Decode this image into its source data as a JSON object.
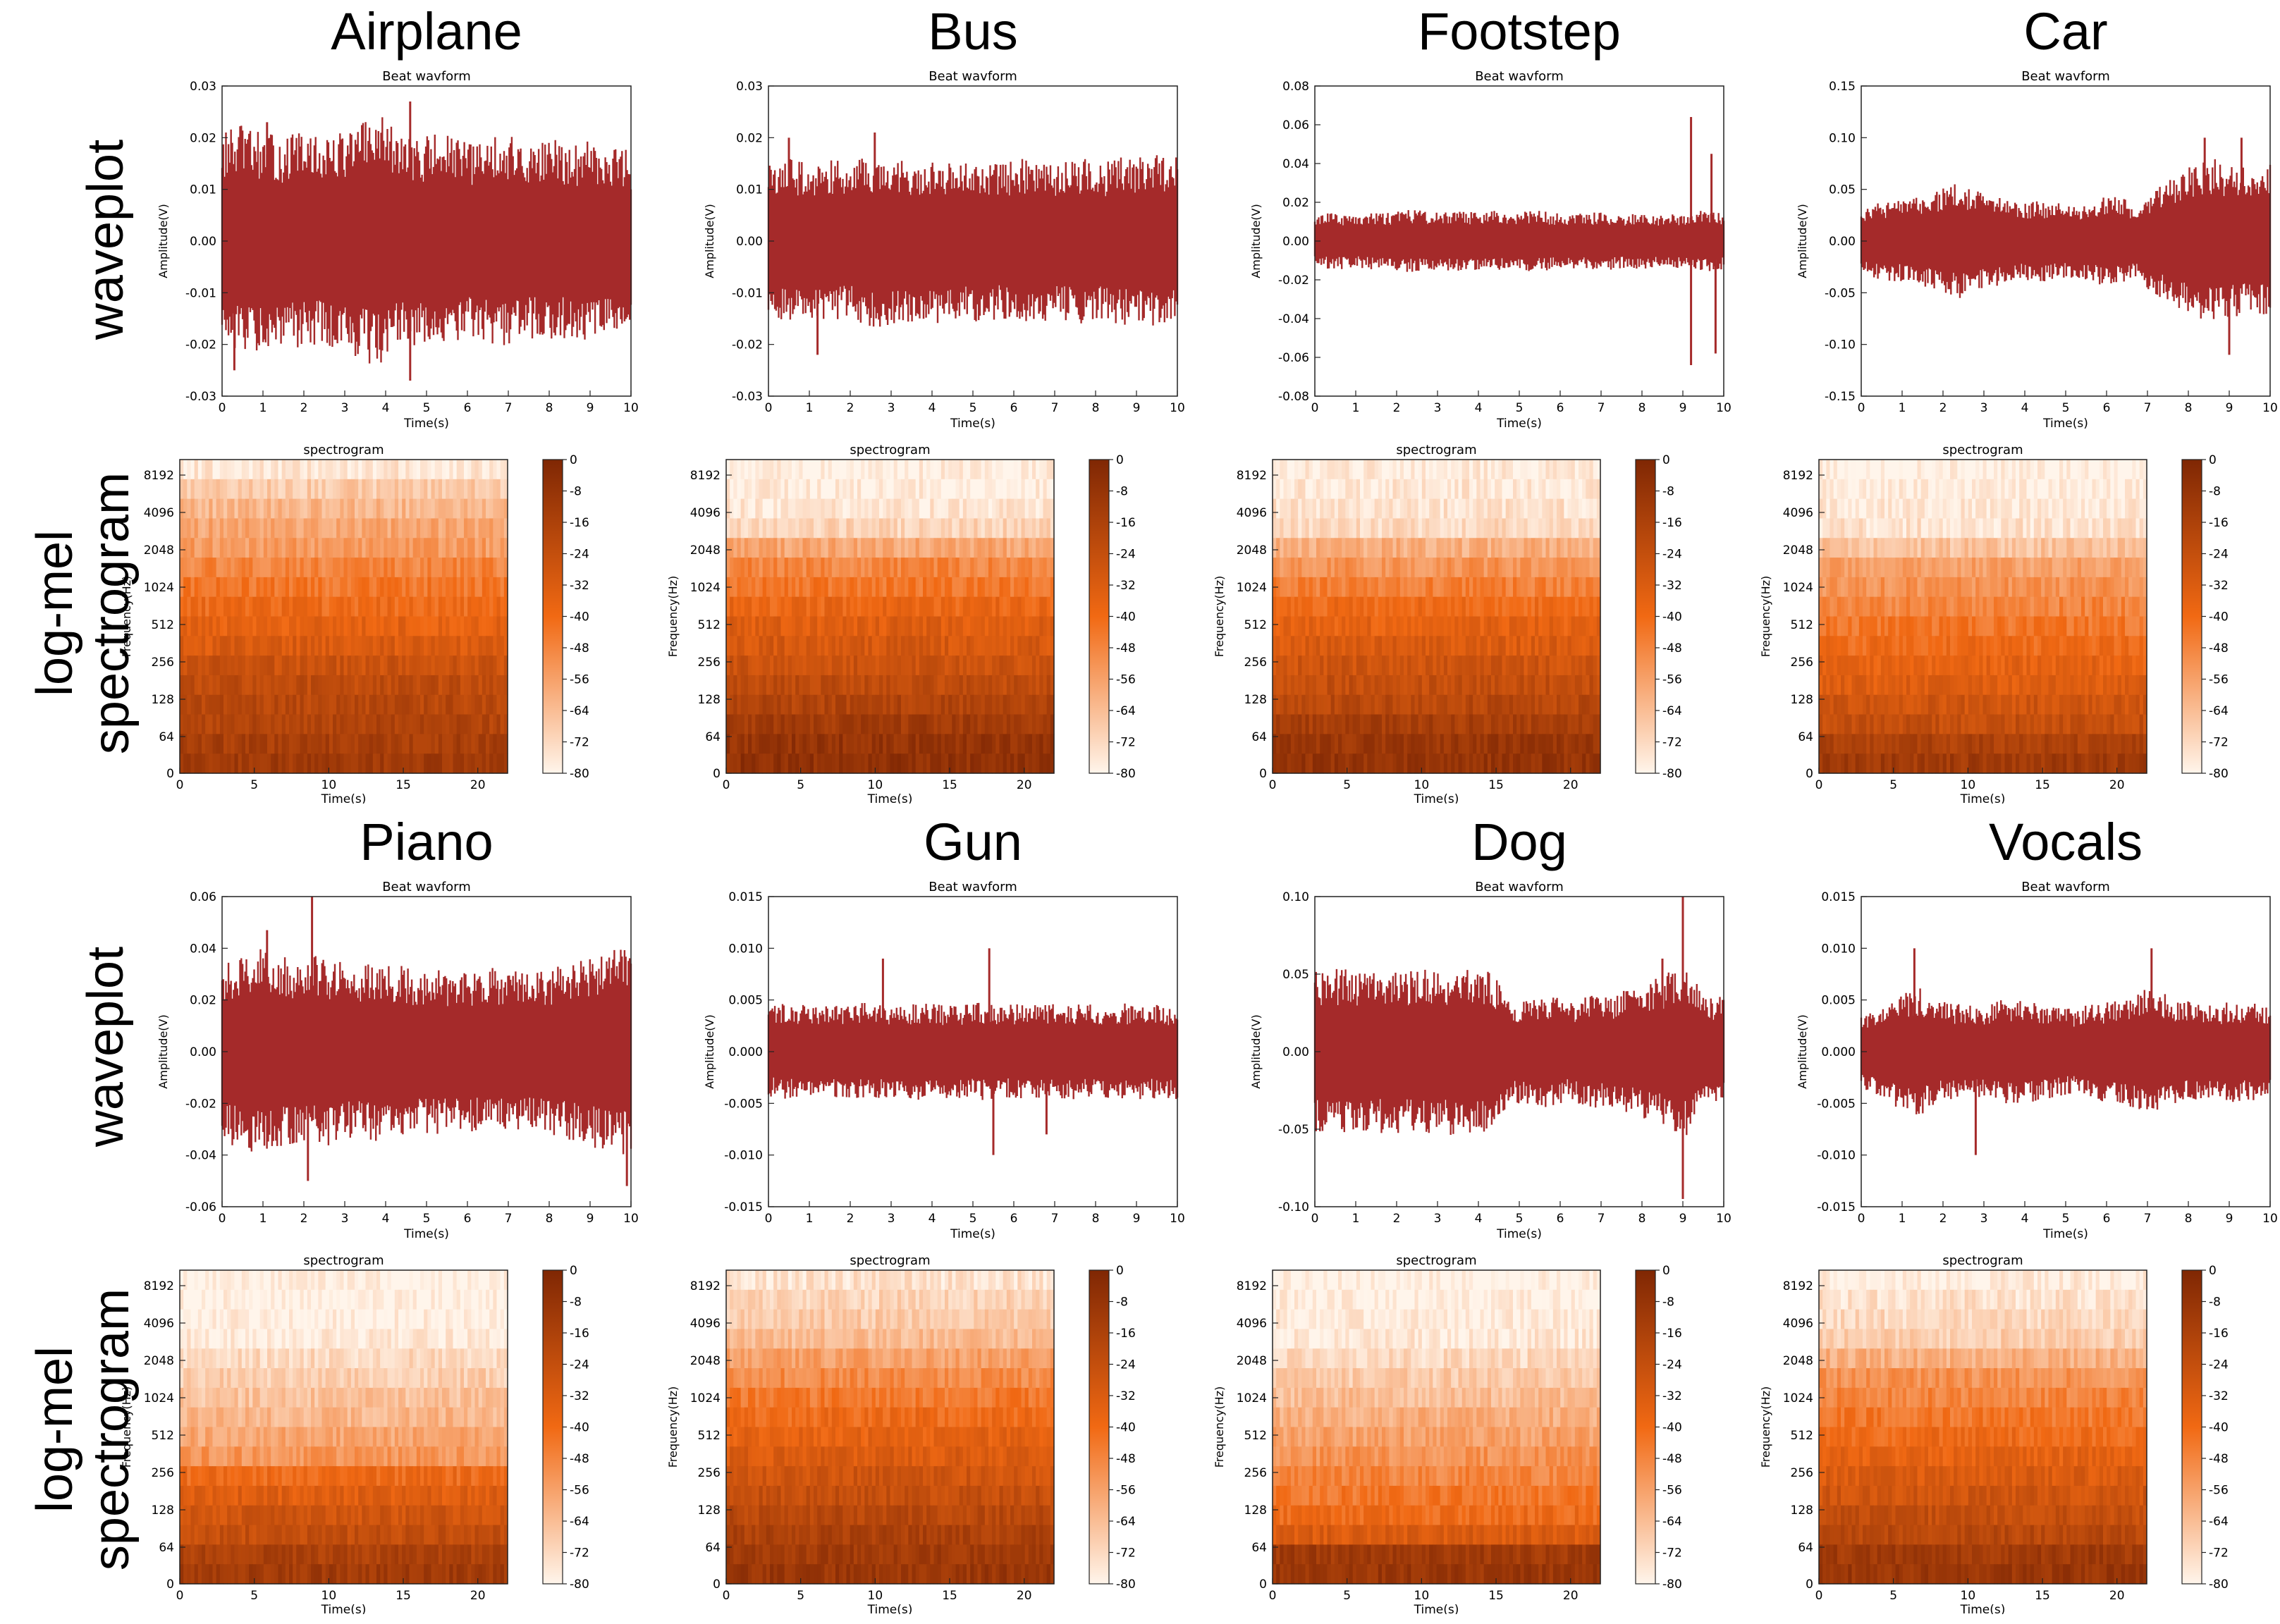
{
  "row_labels": {
    "waveplot": "waveplot",
    "logmel_line1": "log-mel",
    "logmel_line2": "spectrogram"
  },
  "colors": {
    "wave": "#a52a2a",
    "spec_dark": "#7f2704",
    "spec_light": "#fff5eb"
  },
  "chart_data": [
    {
      "id": "airplane",
      "label": "Airplane",
      "waveform": {
        "type": "area",
        "title": "Beat wavform",
        "xlabel": "Time(s)",
        "ylabel": "Amplitude(V)",
        "xlim": [
          0,
          10
        ],
        "ylim": [
          -0.03,
          0.03
        ],
        "xticks": [
          "0",
          "1",
          "2",
          "3",
          "4",
          "5",
          "6",
          "7",
          "8",
          "9",
          "10"
        ],
        "yticks": [
          "0.03",
          "0.02",
          "0.01",
          "0.00",
          "-0.01",
          "-0.02",
          "-0.03"
        ],
        "envelope": [
          0.017,
          0.018,
          0.017,
          0.016,
          0.017,
          0.016,
          0.017,
          0.018,
          0.02,
          0.017,
          0.016,
          0.017,
          0.016,
          0.015,
          0.017,
          0.016,
          0.015,
          0.016,
          0.015,
          0.016,
          0.015,
          0.014
        ],
        "peaks": [
          {
            "t": 4.6,
            "v": 0.027,
            "s": 1
          },
          {
            "t": 4.6,
            "v": 0.027,
            "s": -1
          },
          {
            "t": 0.3,
            "v": 0.025,
            "s": -1
          },
          {
            "t": 1.1,
            "v": 0.023,
            "s": 1
          }
        ]
      },
      "spectrogram": {
        "type": "heatmap",
        "title": "spectrogram",
        "xlabel": "Time(s)",
        "ylabel": "Frequency(Hz)",
        "xlim": [
          0,
          22
        ],
        "xticks": [
          "0",
          "5",
          "10",
          "15",
          "20"
        ],
        "yticks": [
          "8192",
          "4096",
          "2048",
          "1024",
          "512",
          "256",
          "128",
          "64",
          "0"
        ],
        "colorbar": [
          "0",
          "-8",
          "-16",
          "-24",
          "-32",
          "-40",
          "-48",
          "-56",
          "-64",
          "-72",
          "-80"
        ],
        "intensity": [
          0.95,
          0.85,
          0.78,
          0.72,
          0.68,
          0.6,
          0.55,
          0.5,
          0.45,
          0.4,
          0.33,
          0.28,
          0.25,
          0.22,
          0.18,
          0.15
        ]
      }
    },
    {
      "id": "bus",
      "label": "Bus",
      "waveform": {
        "type": "area",
        "title": "Beat wavform",
        "xlabel": "Time(s)",
        "ylabel": "Amplitude(V)",
        "xlim": [
          0,
          10
        ],
        "ylim": [
          -0.03,
          0.03
        ],
        "xticks": [
          "0",
          "1",
          "2",
          "3",
          "4",
          "5",
          "6",
          "7",
          "8",
          "9",
          "10"
        ],
        "yticks": [
          "0.03",
          "0.02",
          "0.01",
          "0.00",
          "-0.01",
          "-0.02",
          "-0.03"
        ],
        "envelope": [
          0.012,
          0.013,
          0.012,
          0.013,
          0.012,
          0.013,
          0.014,
          0.013,
          0.012,
          0.013,
          0.012,
          0.013,
          0.012,
          0.013,
          0.013,
          0.012,
          0.013,
          0.012,
          0.013,
          0.013,
          0.014,
          0.013
        ],
        "peaks": [
          {
            "t": 0.5,
            "v": 0.02,
            "s": 1
          },
          {
            "t": 1.2,
            "v": 0.022,
            "s": -1
          },
          {
            "t": 2.6,
            "v": 0.021,
            "s": 1
          }
        ]
      },
      "spectrogram": {
        "type": "heatmap",
        "title": "spectrogram",
        "xlabel": "Time(s)",
        "ylabel": "Frequency(Hz)",
        "xlim": [
          0,
          22
        ],
        "xticks": [
          "0",
          "5",
          "10",
          "15",
          "20"
        ],
        "yticks": [
          "8192",
          "4096",
          "2048",
          "1024",
          "512",
          "256",
          "128",
          "64",
          "0"
        ],
        "colorbar": [
          "0",
          "-8",
          "-16",
          "-24",
          "-32",
          "-40",
          "-48",
          "-56",
          "-64",
          "-72",
          "-80"
        ],
        "intensity": [
          0.98,
          0.97,
          0.95,
          0.88,
          0.72,
          0.6,
          0.55,
          0.48,
          0.42,
          0.38,
          0.33,
          0.28,
          0.22,
          0.15,
          0.1,
          0.08
        ]
      }
    },
    {
      "id": "footstep",
      "label": "Footstep",
      "waveform": {
        "type": "area",
        "title": "Beat wavform",
        "xlabel": "Time(s)",
        "ylabel": "Amplitude(V)",
        "xlim": [
          0,
          10
        ],
        "ylim": [
          -0.08,
          0.08
        ],
        "xticks": [
          "0",
          "1",
          "2",
          "3",
          "4",
          "5",
          "6",
          "7",
          "8",
          "9",
          "10"
        ],
        "yticks": [
          "0.08",
          "0.06",
          "0.04",
          "0.02",
          "0.00",
          "-0.02",
          "-0.04",
          "-0.06",
          "-0.08"
        ],
        "envelope": [
          0.011,
          0.012,
          0.011,
          0.012,
          0.012,
          0.013,
          0.012,
          0.013,
          0.012,
          0.013,
          0.012,
          0.013,
          0.012,
          0.011,
          0.012,
          0.012,
          0.011,
          0.012,
          0.011,
          0.012,
          0.013,
          0.012
        ],
        "peaks": [
          {
            "t": 9.2,
            "v": 0.064,
            "s": 1
          },
          {
            "t": 9.2,
            "v": 0.064,
            "s": -1
          },
          {
            "t": 9.8,
            "v": 0.058,
            "s": -1
          },
          {
            "t": 9.7,
            "v": 0.045,
            "s": 1
          }
        ]
      },
      "spectrogram": {
        "type": "heatmap",
        "title": "spectrogram",
        "xlabel": "Time(s)",
        "ylabel": "Frequency(Hz)",
        "xlim": [
          0,
          22
        ],
        "xticks": [
          "0",
          "5",
          "10",
          "15",
          "20"
        ],
        "yticks": [
          "8192",
          "4096",
          "2048",
          "1024",
          "512",
          "256",
          "128",
          "64",
          "0"
        ],
        "colorbar": [
          "0",
          "-8",
          "-16",
          "-24",
          "-32",
          "-40",
          "-48",
          "-56",
          "-64",
          "-72",
          "-80"
        ],
        "intensity": [
          0.97,
          0.95,
          0.93,
          0.9,
          0.75,
          0.65,
          0.58,
          0.5,
          0.45,
          0.4,
          0.35,
          0.3,
          0.25,
          0.18,
          0.12,
          0.1
        ]
      }
    },
    {
      "id": "car",
      "label": "Car",
      "waveform": {
        "type": "area",
        "title": "Beat wavform",
        "xlabel": "Time(s)",
        "ylabel": "Amplitude(V)",
        "xlim": [
          0,
          10
        ],
        "ylim": [
          -0.15,
          0.15
        ],
        "xticks": [
          "0",
          "1",
          "2",
          "3",
          "4",
          "5",
          "6",
          "7",
          "8",
          "9",
          "10"
        ],
        "yticks": [
          "0.15",
          "0.10",
          "0.05",
          "0.00",
          "-0.05",
          "-0.10",
          "-0.15"
        ],
        "envelope": [
          0.025,
          0.03,
          0.032,
          0.035,
          0.04,
          0.045,
          0.04,
          0.035,
          0.03,
          0.032,
          0.03,
          0.028,
          0.033,
          0.035,
          0.03,
          0.04,
          0.05,
          0.06,
          0.065,
          0.06,
          0.055,
          0.06
        ],
        "peaks": [
          {
            "t": 8.4,
            "v": 0.1,
            "s": 1
          },
          {
            "t": 9.3,
            "v": 0.1,
            "s": 1
          },
          {
            "t": 9.0,
            "v": 0.11,
            "s": -1
          }
        ]
      },
      "spectrogram": {
        "type": "heatmap",
        "title": "spectrogram",
        "xlabel": "Time(s)",
        "ylabel": "Frequency(Hz)",
        "xlim": [
          0,
          22
        ],
        "xticks": [
          "0",
          "5",
          "10",
          "15",
          "20"
        ],
        "yticks": [
          "8192",
          "4096",
          "2048",
          "1024",
          "512",
          "256",
          "128",
          "64",
          "0"
        ],
        "colorbar": [
          "0",
          "-8",
          "-16",
          "-24",
          "-32",
          "-40",
          "-48",
          "-56",
          "-64",
          "-72",
          "-80"
        ],
        "intensity": [
          0.99,
          0.98,
          0.96,
          0.93,
          0.82,
          0.7,
          0.65,
          0.6,
          0.55,
          0.5,
          0.45,
          0.42,
          0.35,
          0.3,
          0.2,
          0.15
        ]
      }
    },
    {
      "id": "piano",
      "label": "Piano",
      "waveform": {
        "type": "area",
        "title": "Beat wavform",
        "xlabel": "Time(s)",
        "ylabel": "Amplitude(V)",
        "xlim": [
          0,
          10
        ],
        "ylim": [
          -0.06,
          0.06
        ],
        "xticks": [
          "0",
          "1",
          "2",
          "3",
          "4",
          "5",
          "6",
          "7",
          "8",
          "9",
          "10"
        ],
        "yticks": [
          "0.06",
          "0.04",
          "0.02",
          "0.00",
          "-0.02",
          "-0.04",
          "-0.06"
        ],
        "envelope": [
          0.028,
          0.03,
          0.032,
          0.03,
          0.028,
          0.03,
          0.028,
          0.026,
          0.028,
          0.027,
          0.025,
          0.026,
          0.024,
          0.025,
          0.026,
          0.025,
          0.024,
          0.026,
          0.028,
          0.03,
          0.032,
          0.033
        ],
        "peaks": [
          {
            "t": 2.2,
            "v": 0.06,
            "s": 1
          },
          {
            "t": 1.1,
            "v": 0.047,
            "s": 1
          },
          {
            "t": 9.9,
            "v": 0.052,
            "s": -1
          },
          {
            "t": 2.1,
            "v": 0.05,
            "s": -1
          }
        ]
      },
      "spectrogram": {
        "type": "heatmap",
        "title": "spectrogram",
        "xlabel": "Time(s)",
        "ylabel": "Frequency(Hz)",
        "xlim": [
          0,
          22
        ],
        "xticks": [
          "0",
          "5",
          "10",
          "15",
          "20"
        ],
        "yticks": [
          "8192",
          "4096",
          "2048",
          "1024",
          "512",
          "256",
          "128",
          "64",
          "0"
        ],
        "colorbar": [
          "0",
          "-8",
          "-16",
          "-24",
          "-32",
          "-40",
          "-48",
          "-56",
          "-64",
          "-72",
          "-80"
        ],
        "intensity": [
          0.99,
          0.99,
          0.98,
          0.96,
          0.9,
          0.86,
          0.82,
          0.78,
          0.72,
          0.66,
          0.5,
          0.42,
          0.35,
          0.3,
          0.2,
          0.15
        ]
      }
    },
    {
      "id": "gun",
      "label": "Gun",
      "waveform": {
        "type": "area",
        "title": "Beat wavform",
        "xlabel": "Time(s)",
        "ylabel": "Amplitude(V)",
        "xlim": [
          0,
          10
        ],
        "ylim": [
          -0.015,
          0.015
        ],
        "xticks": [
          "0",
          "1",
          "2",
          "3",
          "4",
          "5",
          "6",
          "7",
          "8",
          "9",
          "10"
        ],
        "yticks": [
          "0.015",
          "0.010",
          "0.005",
          "0.000",
          "-0.005",
          "-0.010",
          "-0.015"
        ],
        "envelope": [
          0.0035,
          0.0038,
          0.0036,
          0.0037,
          0.0036,
          0.0038,
          0.0037,
          0.0036,
          0.0038,
          0.0036,
          0.0037,
          0.0038,
          0.0036,
          0.0037,
          0.0036,
          0.0038,
          0.0037,
          0.0036,
          0.0038,
          0.0037,
          0.0036,
          0.0037
        ],
        "peaks": [
          {
            "t": 5.5,
            "v": 0.01,
            "s": -1
          },
          {
            "t": 5.4,
            "v": 0.01,
            "s": 1
          },
          {
            "t": 2.8,
            "v": 0.009,
            "s": 1
          },
          {
            "t": 6.8,
            "v": 0.008,
            "s": -1
          }
        ]
      },
      "spectrogram": {
        "type": "heatmap",
        "title": "spectrogram",
        "xlabel": "Time(s)",
        "ylabel": "Frequency(Hz)",
        "xlim": [
          0,
          22
        ],
        "xticks": [
          "0",
          "5",
          "10",
          "15",
          "20"
        ],
        "yticks": [
          "8192",
          "4096",
          "2048",
          "1024",
          "512",
          "256",
          "128",
          "64",
          "0"
        ],
        "colorbar": [
          "0",
          "-8",
          "-16",
          "-24",
          "-32",
          "-40",
          "-48",
          "-56",
          "-64",
          "-72",
          "-80"
        ],
        "intensity": [
          0.93,
          0.88,
          0.85,
          0.8,
          0.7,
          0.62,
          0.56,
          0.5,
          0.45,
          0.4,
          0.35,
          0.3,
          0.25,
          0.2,
          0.15,
          0.12
        ]
      }
    },
    {
      "id": "dog",
      "label": "Dog",
      "waveform": {
        "type": "area",
        "title": "Beat wavform",
        "xlabel": "Time(s)",
        "ylabel": "Amplitude(V)",
        "xlim": [
          0,
          10
        ],
        "ylim": [
          -0.1,
          0.1
        ],
        "xticks": [
          "0",
          "1",
          "2",
          "3",
          "4",
          "5",
          "6",
          "7",
          "8",
          "9",
          "10"
        ],
        "yticks": [
          "0.10",
          "0.05",
          "0.00",
          "-0.05",
          "-0.10"
        ],
        "envelope": [
          0.042,
          0.043,
          0.042,
          0.043,
          0.042,
          0.043,
          0.042,
          0.043,
          0.042,
          0.043,
          0.026,
          0.028,
          0.03,
          0.025,
          0.03,
          0.028,
          0.032,
          0.035,
          0.04,
          0.045,
          0.03,
          0.028
        ],
        "peaks": [
          {
            "t": 9.0,
            "v": 0.1,
            "s": 1
          },
          {
            "t": 9.0,
            "v": 0.095,
            "s": -1
          },
          {
            "t": 8.5,
            "v": 0.06,
            "s": 1
          }
        ]
      },
      "spectrogram": {
        "type": "heatmap",
        "title": "spectrogram",
        "xlabel": "Time(s)",
        "ylabel": "Frequency(Hz)",
        "xlim": [
          0,
          22
        ],
        "xticks": [
          "0",
          "5",
          "10",
          "15",
          "20"
        ],
        "yticks": [
          "8192",
          "4096",
          "2048",
          "1024",
          "512",
          "256",
          "128",
          "64",
          "0"
        ],
        "colorbar": [
          "0",
          "-8",
          "-16",
          "-24",
          "-32",
          "-40",
          "-48",
          "-56",
          "-64",
          "-72",
          "-80"
        ],
        "intensity": [
          0.99,
          0.98,
          0.97,
          0.95,
          0.9,
          0.85,
          0.8,
          0.75,
          0.7,
          0.65,
          0.6,
          0.55,
          0.5,
          0.4,
          0.15,
          0.12
        ]
      }
    },
    {
      "id": "vocals",
      "label": "Vocals",
      "waveform": {
        "type": "area",
        "title": "Beat wavform",
        "xlabel": "Time(s)",
        "ylabel": "Amplitude(V)",
        "xlim": [
          0,
          10
        ],
        "ylim": [
          -0.015,
          0.015
        ],
        "xticks": [
          "0",
          "1",
          "2",
          "3",
          "4",
          "5",
          "6",
          "7",
          "8",
          "9",
          "10"
        ],
        "yticks": [
          "0.015",
          "0.010",
          "0.005",
          "0.000",
          "-0.005",
          "-0.010",
          "-0.015"
        ],
        "envelope": [
          0.003,
          0.0035,
          0.0045,
          0.005,
          0.004,
          0.0038,
          0.0035,
          0.004,
          0.0042,
          0.004,
          0.0035,
          0.0033,
          0.0038,
          0.004,
          0.0045,
          0.005,
          0.0042,
          0.0038,
          0.0036,
          0.004,
          0.0038,
          0.0035
        ],
        "peaks": [
          {
            "t": 1.3,
            "v": 0.01,
            "s": 1
          },
          {
            "t": 7.1,
            "v": 0.01,
            "s": 1
          },
          {
            "t": 2.8,
            "v": 0.01,
            "s": -1
          }
        ]
      },
      "spectrogram": {
        "type": "heatmap",
        "title": "spectrogram",
        "xlabel": "Time(s)",
        "ylabel": "Frequency(Hz)",
        "xlim": [
          0,
          22
        ],
        "xticks": [
          "0",
          "5",
          "10",
          "15",
          "20"
        ],
        "yticks": [
          "8192",
          "4096",
          "2048",
          "1024",
          "512",
          "256",
          "128",
          "64",
          "0"
        ],
        "colorbar": [
          "0",
          "-8",
          "-16",
          "-24",
          "-32",
          "-40",
          "-48",
          "-56",
          "-64",
          "-72",
          "-80"
        ],
        "intensity": [
          0.97,
          0.93,
          0.9,
          0.86,
          0.75,
          0.65,
          0.6,
          0.55,
          0.5,
          0.45,
          0.4,
          0.35,
          0.3,
          0.25,
          0.15,
          0.12
        ]
      }
    }
  ]
}
